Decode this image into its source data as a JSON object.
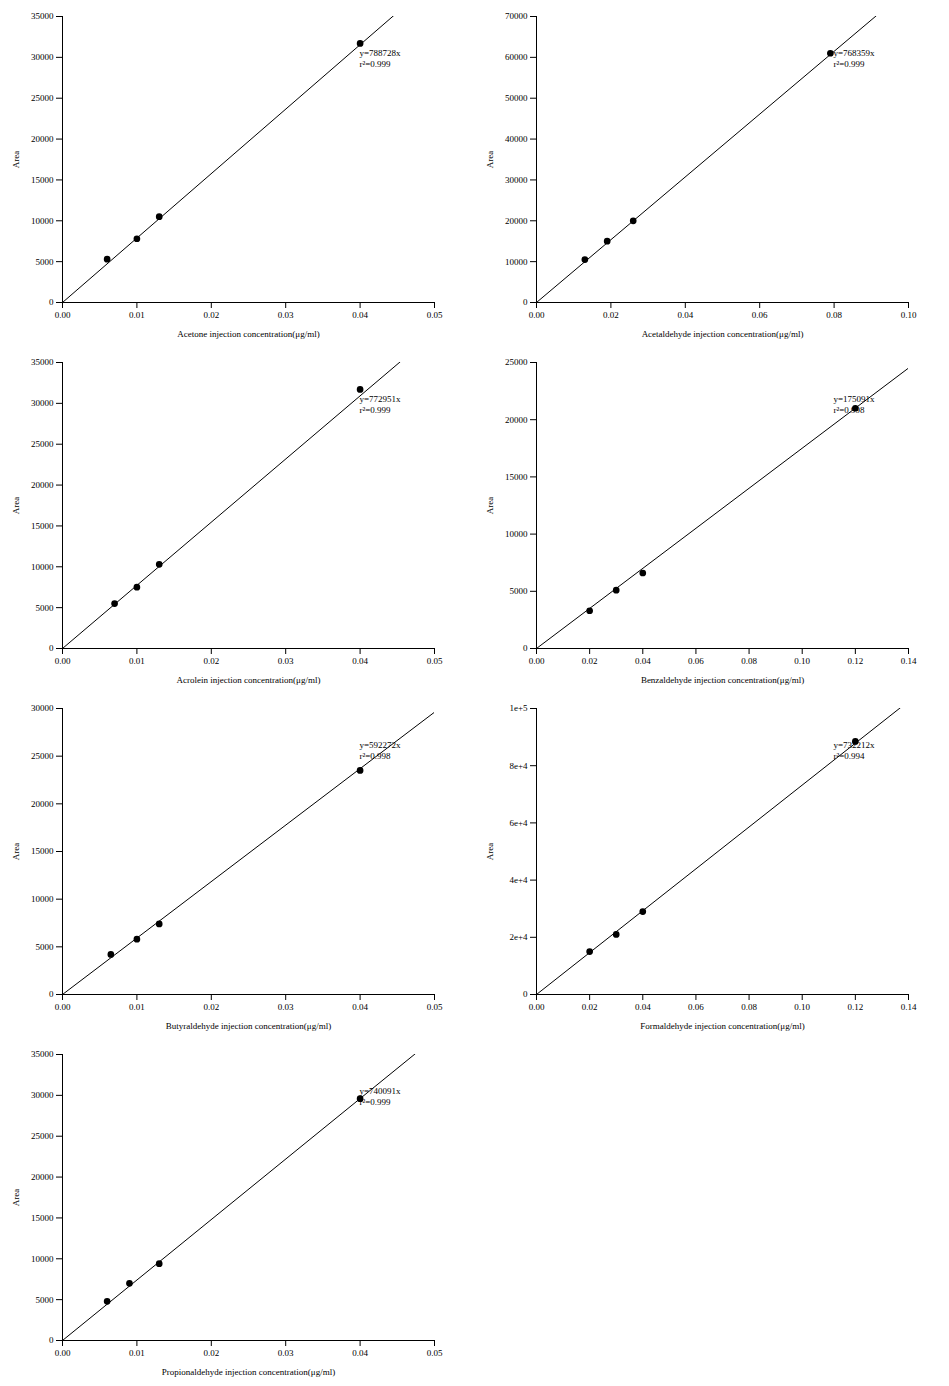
{
  "chart_data": [
    {
      "type": "scatter",
      "x_label": "Acetone injection concentration(μg/ml)",
      "y_label": "Area",
      "x": [
        0.006,
        0.01,
        0.013,
        0.04
      ],
      "values": [
        5300,
        7800,
        10500,
        31700
      ],
      "color": "#000000",
      "marker": "circle",
      "fit": {
        "slope": 788728,
        "equation": "y=788728x",
        "r_squared": 0.999,
        "r_squared_label": "r²=0.999"
      },
      "xlim": [
        0,
        0.05
      ],
      "xticks": [
        {
          "value": 0,
          "label": "0.00"
        },
        {
          "value": 0.01,
          "label": "0.01"
        },
        {
          "value": 0.02,
          "label": "0.02"
        },
        {
          "value": 0.03,
          "label": "0.03"
        },
        {
          "value": 0.04,
          "label": "0.04"
        },
        {
          "value": 0.05,
          "label": "0.05"
        }
      ],
      "ylim": [
        0,
        35000
      ],
      "yticks": [
        0,
        5000,
        10000,
        15000,
        20000,
        25000,
        30000,
        35000
      ],
      "grid": false
    },
    {
      "type": "scatter",
      "x_label": "Acetaldehyde injection concentration(μg/ml)",
      "y_label": "Area",
      "x": [
        0.013,
        0.019,
        0.026,
        0.079
      ],
      "values": [
        10500,
        15000,
        20000,
        61000
      ],
      "color": "#000000",
      "marker": "circle",
      "fit": {
        "slope": 768359,
        "equation": "y=768359x",
        "r_squared": 0.999,
        "r_squared_label": "r²=0.999"
      },
      "xlim": [
        0,
        0.1
      ],
      "xticks": [
        {
          "value": 0,
          "label": "0.00"
        },
        {
          "value": 0.02,
          "label": "0.02"
        },
        {
          "value": 0.04,
          "label": "0.04"
        },
        {
          "value": 0.06,
          "label": "0.06"
        },
        {
          "value": 0.08,
          "label": "0.08"
        },
        {
          "value": 0.1,
          "label": "0.10"
        }
      ],
      "ylim": [
        0,
        70000
      ],
      "yticks": [
        0,
        10000,
        20000,
        30000,
        40000,
        50000,
        60000,
        70000
      ],
      "grid": false
    },
    {
      "type": "scatter",
      "x_label": "Acrolein injection concentration(μg/ml)",
      "y_label": "Area",
      "x": [
        0.007,
        0.01,
        0.013,
        0.04
      ],
      "values": [
        5500,
        7500,
        10300,
        31700
      ],
      "color": "#000000",
      "marker": "circle",
      "fit": {
        "slope": 772951,
        "equation": "y=772951x",
        "r_squared": 0.999,
        "r_squared_label": "r²=0.999"
      },
      "xlim": [
        0,
        0.05
      ],
      "xticks": [
        {
          "value": 0,
          "label": "0.00"
        },
        {
          "value": 0.01,
          "label": "0.01"
        },
        {
          "value": 0.02,
          "label": "0.02"
        },
        {
          "value": 0.03,
          "label": "0.03"
        },
        {
          "value": 0.04,
          "label": "0.04"
        },
        {
          "value": 0.05,
          "label": "0.05"
        }
      ],
      "ylim": [
        0,
        35000
      ],
      "yticks": [
        0,
        5000,
        10000,
        15000,
        20000,
        25000,
        30000,
        35000
      ],
      "grid": false
    },
    {
      "type": "scatter",
      "x_label": "Benzaldehyde injection concentration(μg/ml)",
      "y_label": "Area",
      "x": [
        0.02,
        0.03,
        0.04,
        0.12
      ],
      "values": [
        3300,
        5100,
        6600,
        21000
      ],
      "color": "#000000",
      "marker": "circle",
      "fit": {
        "slope": 175091,
        "equation": "y=175091x",
        "r_squared": 0.998,
        "r_squared_label": "r²=0.998"
      },
      "xlim": [
        0,
        0.14
      ],
      "xticks": [
        {
          "value": 0,
          "label": "0.00"
        },
        {
          "value": 0.02,
          "label": "0.02"
        },
        {
          "value": 0.04,
          "label": "0.04"
        },
        {
          "value": 0.06,
          "label": "0.06"
        },
        {
          "value": 0.08,
          "label": "0.08"
        },
        {
          "value": 0.1,
          "label": "0.10"
        },
        {
          "value": 0.12,
          "label": "0.12"
        },
        {
          "value": 0.14,
          "label": "0.14"
        }
      ],
      "ylim": [
        0,
        25000
      ],
      "yticks": [
        0,
        5000,
        10000,
        15000,
        20000,
        25000
      ],
      "grid": false
    },
    {
      "type": "scatter",
      "x_label": "Butyraldehyde injection concentration(μg/ml)",
      "y_label": "Area",
      "x": [
        0.0065,
        0.01,
        0.013,
        0.04
      ],
      "values": [
        4200,
        5800,
        7400,
        23500
      ],
      "color": "#000000",
      "marker": "circle",
      "fit": {
        "slope": 592272,
        "equation": "y=592272x",
        "r_squared": 0.998,
        "r_squared_label": "r²=0.998"
      },
      "xlim": [
        0,
        0.05
      ],
      "xticks": [
        {
          "value": 0,
          "label": "0.00"
        },
        {
          "value": 0.01,
          "label": "0.01"
        },
        {
          "value": 0.02,
          "label": "0.02"
        },
        {
          "value": 0.03,
          "label": "0.03"
        },
        {
          "value": 0.04,
          "label": "0.04"
        },
        {
          "value": 0.05,
          "label": "0.05"
        }
      ],
      "ylim": [
        0,
        30000
      ],
      "yticks": [
        0,
        5000,
        10000,
        15000,
        20000,
        25000,
        30000
      ],
      "grid": false
    },
    {
      "type": "scatter",
      "x_label": "Formaldehyde injection concentration(μg/ml)",
      "y_label": "Area",
      "x": [
        0.02,
        0.03,
        0.04,
        0.12
      ],
      "values": [
        15000,
        21000,
        29000,
        88500
      ],
      "color": "#000000",
      "marker": "circle",
      "fit": {
        "slope": 732212,
        "equation": "y=732212x",
        "r_squared": 0.994,
        "r_squared_label": "r²=0.994"
      },
      "xlim": [
        0,
        0.14
      ],
      "xticks": [
        {
          "value": 0,
          "label": "0.00"
        },
        {
          "value": 0.02,
          "label": "0.02"
        },
        {
          "value": 0.04,
          "label": "0.04"
        },
        {
          "value": 0.06,
          "label": "0.06"
        },
        {
          "value": 0.08,
          "label": "0.08"
        },
        {
          "value": 0.1,
          "label": "0.10"
        },
        {
          "value": 0.12,
          "label": "0.12"
        },
        {
          "value": 0.14,
          "label": "0.14"
        }
      ],
      "ylim": [
        0,
        100000
      ],
      "yticks": [
        0,
        {
          "value": 20000,
          "label": "2e+4"
        },
        {
          "value": 40000,
          "label": "4e+4"
        },
        {
          "value": 60000,
          "label": "6e+4"
        },
        {
          "value": 80000,
          "label": "8e+4"
        },
        {
          "value": 100000,
          "label": "1e+5"
        }
      ],
      "grid": false
    },
    {
      "type": "scatter",
      "x_label": "Propionaldehyde injection concentration(μg/ml)",
      "y_label": "Area",
      "x": [
        0.006,
        0.009,
        0.013,
        0.04
      ],
      "values": [
        4800,
        7000,
        9400,
        29600
      ],
      "color": "#000000",
      "marker": "circle",
      "fit": {
        "slope": 740091,
        "equation": "y=740091x",
        "r_squared": 0.999,
        "r_squared_label": "r²=0.999"
      },
      "xlim": [
        0,
        0.05
      ],
      "xticks": [
        {
          "value": 0,
          "label": "0.00"
        },
        {
          "value": 0.01,
          "label": "0.01"
        },
        {
          "value": 0.02,
          "label": "0.02"
        },
        {
          "value": 0.03,
          "label": "0.03"
        },
        {
          "value": 0.04,
          "label": "0.04"
        },
        {
          "value": 0.05,
          "label": "0.05"
        }
      ],
      "ylim": [
        0,
        35000
      ],
      "yticks": [
        0,
        5000,
        10000,
        15000,
        20000,
        25000,
        30000,
        35000
      ],
      "grid": false
    }
  ]
}
